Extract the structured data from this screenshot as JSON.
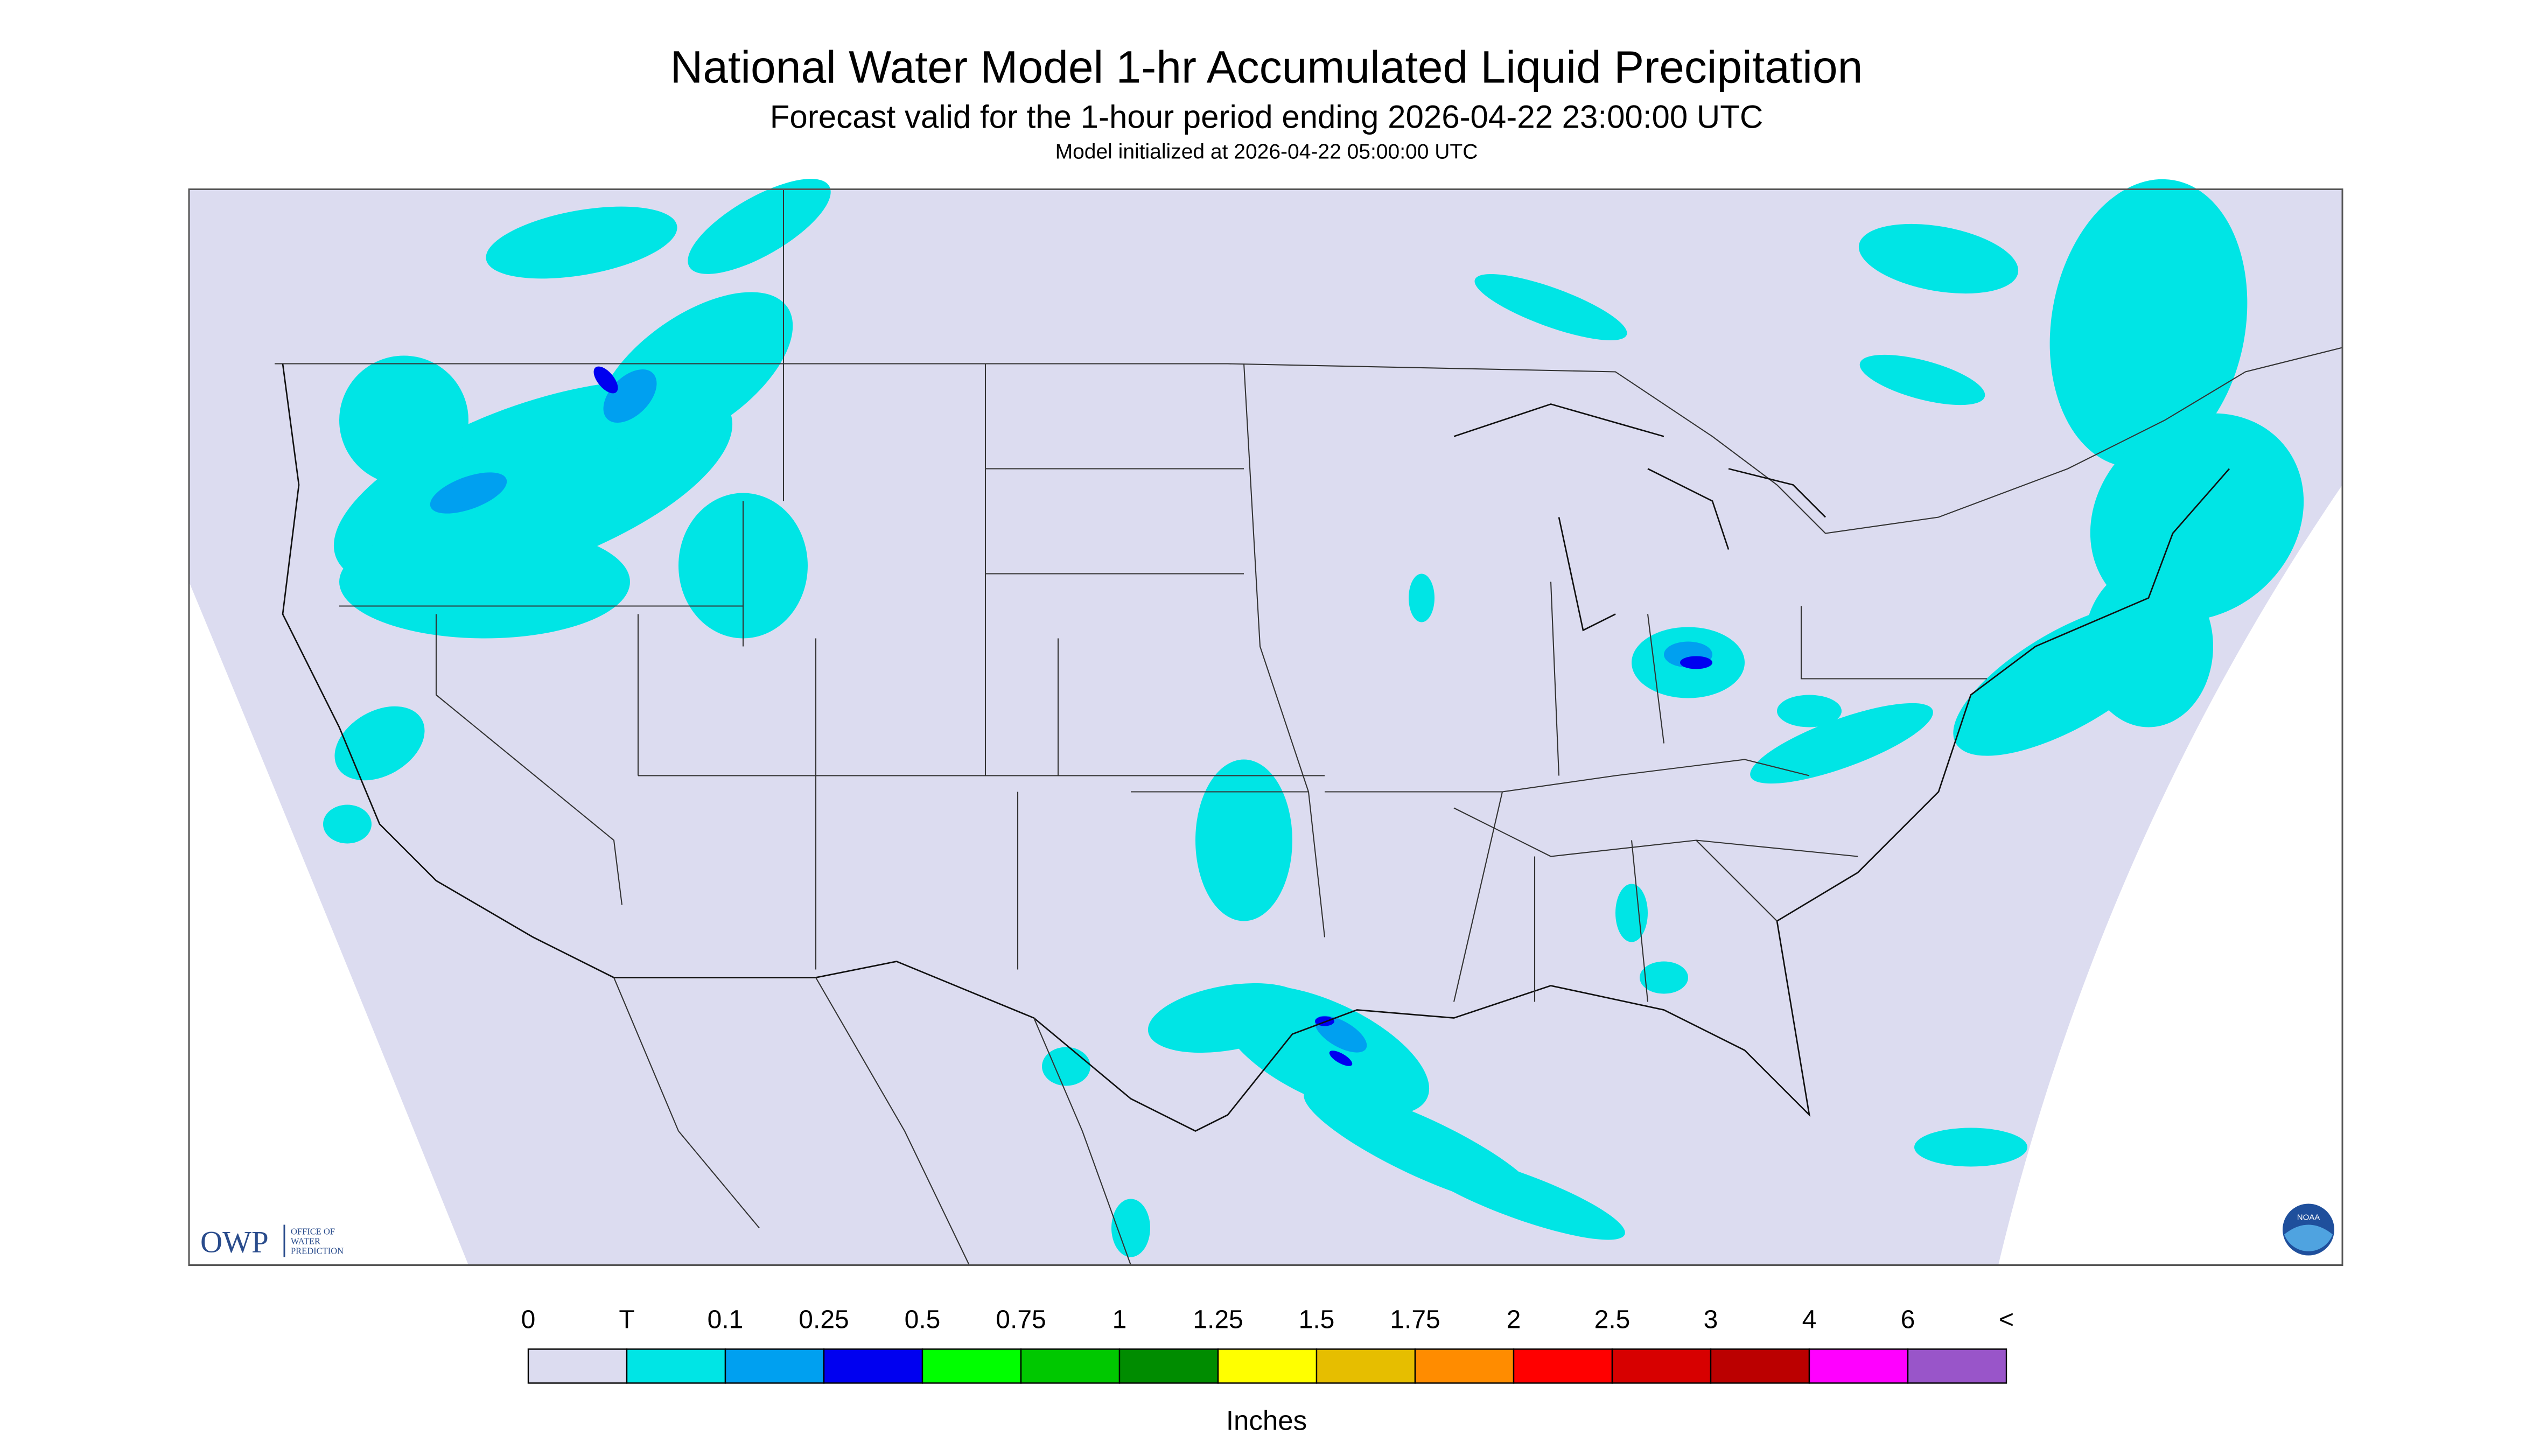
{
  "header": {
    "title": "National Water Model 1-hr Accumulated Liquid Precipitation",
    "subtitle": "Forecast valid for the 1-hour period ending 2026-04-22 23:00:00 UTC",
    "initialized": "Model initialized at 2026-04-22 05:00:00 UTC"
  },
  "legend": {
    "labels": [
      "0",
      "T",
      "0.1",
      "0.25",
      "0.5",
      "0.75",
      "1",
      "1.25",
      "1.5",
      "1.75",
      "2",
      "2.5",
      "3",
      "4",
      "6",
      "<"
    ],
    "colors": [
      "#dcdcf0",
      "#00e5e5",
      "#00a0f0",
      "#0000f0",
      "#00ff00",
      "#00c800",
      "#008c00",
      "#ffff00",
      "#e6be00",
      "#ff8c00",
      "#ff0000",
      "#d70000",
      "#bb0000",
      "#ff00ff",
      "#9955c9"
    ],
    "unit": "Inches"
  },
  "logos": {
    "owp": "OWP",
    "owp_lines": [
      "OFFICE OF",
      "WATER",
      "PREDICTION"
    ],
    "noaa": "NOAA"
  }
}
